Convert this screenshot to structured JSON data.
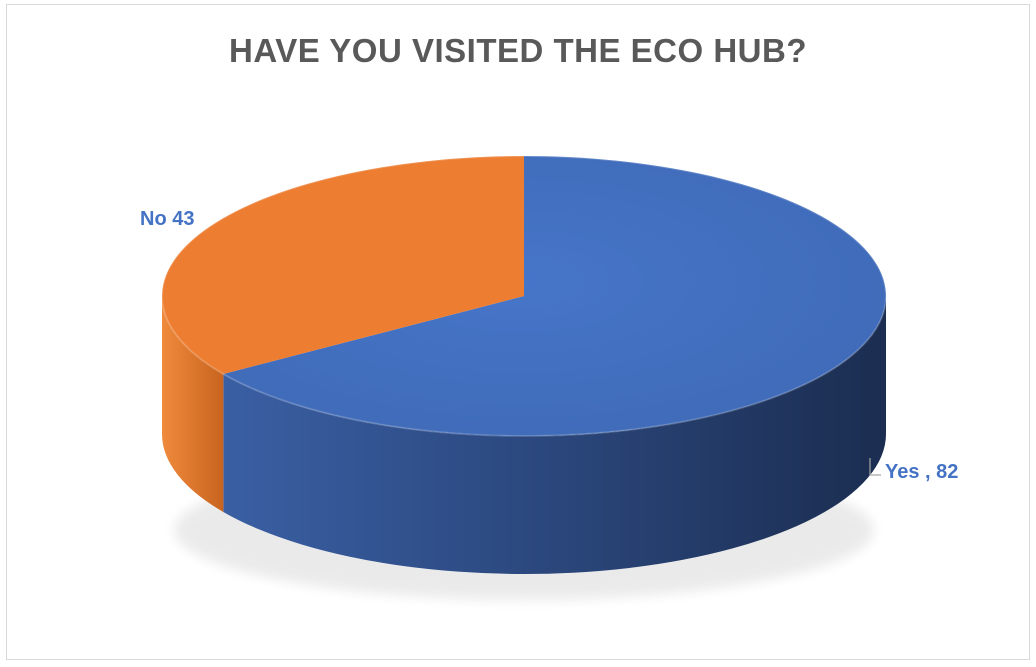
{
  "chart_data": {
    "type": "pie",
    "title": "HAVE YOU VISITED THE ECO HUB?",
    "slices": [
      {
        "label": "Yes",
        "value": 82,
        "color": "#4472c4",
        "data_label": "Yes , 82"
      },
      {
        "label": "No",
        "value": 43,
        "color": "#ed7d31",
        "data_label": "No 43"
      }
    ],
    "style": "3d",
    "label_color": "#4472c4"
  }
}
